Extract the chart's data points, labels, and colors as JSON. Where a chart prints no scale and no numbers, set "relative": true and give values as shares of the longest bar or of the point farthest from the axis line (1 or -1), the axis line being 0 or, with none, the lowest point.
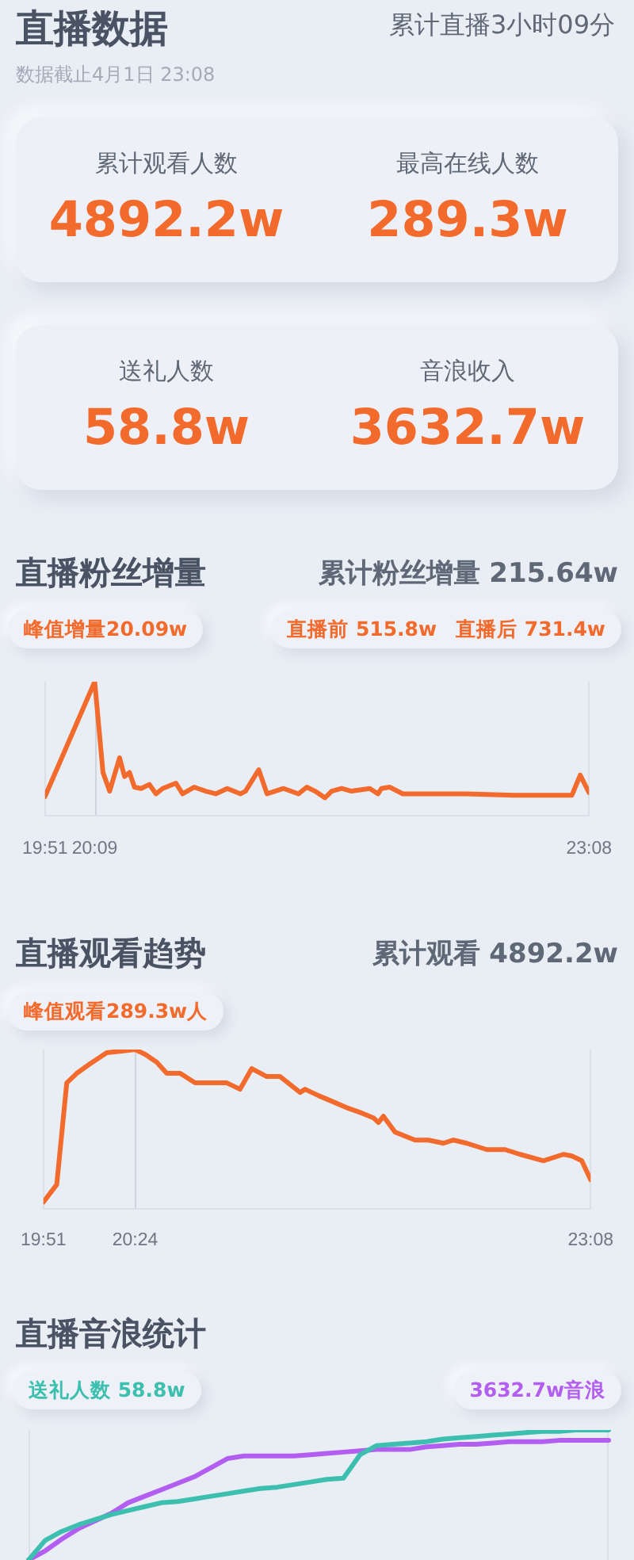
{
  "chart_data": [
    {
      "type": "other",
      "title": "直播数据",
      "subtitle": "累计直播3小时09分",
      "annotations": [
        "数据截止4月1日 23:08",
        "累计观看人数",
        "4892.2w",
        "最高在线人数",
        "289.3w",
        "送礼人数",
        "58.8w",
        "音浪收入",
        "3632.7w"
      ]
    },
    {
      "type": "line",
      "title": "直播粉丝增量",
      "annotations": [
        "累计粉丝增量 215.64w",
        "峰值增量20.09w",
        "直播前 515.8w",
        "直播后 731.4w"
      ],
      "relative": true,
      "marker": "none",
      "color": "#f26a2c",
      "x": [
        19.85,
        20.15,
        20.2,
        20.24,
        20.3,
        20.33,
        20.36,
        20.39,
        20.43,
        20.48,
        20.52,
        20.56,
        20.64,
        20.68,
        20.75,
        20.82,
        20.88,
        20.95,
        21.03,
        21.06,
        21.14,
        21.19,
        21.29,
        21.38,
        21.43,
        21.48,
        21.54,
        21.58,
        21.64,
        21.7,
        21.81,
        21.86,
        21.88,
        21.93,
        22.01,
        22.1,
        22.39,
        22.68,
        22.92,
        23.03,
        23.08,
        23.133
      ],
      "values": [
        0.14,
        1,
        0.32,
        0.18,
        0.43,
        0.29,
        0.32,
        0.21,
        0.2,
        0.23,
        0.16,
        0.2,
        0.24,
        0.16,
        0.21,
        0.18,
        0.16,
        0.2,
        0.16,
        0.18,
        0.34,
        0.16,
        0.2,
        0.16,
        0.21,
        0.18,
        0.13,
        0.18,
        0.2,
        0.18,
        0.2,
        0.16,
        0.2,
        0.21,
        0.16,
        0.16,
        0.16,
        0.15,
        0.15,
        0.15,
        0.3,
        0.17
      ],
      "xlim": [
        19.85,
        23.133
      ],
      "xticks": [
        {
          "value": 19.85,
          "label": "19:51"
        },
        {
          "value": 20.15,
          "label": "20:09"
        },
        {
          "value": 23.133,
          "label": "23:08"
        }
      ],
      "ref_lines": [
        {
          "axis": "x",
          "value": 20.15
        }
      ]
    },
    {
      "type": "line",
      "title": "直播观看趋势",
      "annotations": [
        "累计观看 4892.2w",
        "峰值观看289.3w人"
      ],
      "relative": true,
      "marker": "none",
      "color": "#f26a2c",
      "x": [
        19.85,
        19.93,
        19.99,
        20.05,
        20.13,
        20.23,
        20.32,
        20.4,
        20.46,
        20.53,
        20.59,
        20.67,
        20.76,
        20.84,
        20.95,
        21.03,
        21.1,
        21.19,
        21.27,
        21.39,
        21.42,
        21.5,
        21.59,
        21.68,
        21.76,
        21.83,
        21.86,
        21.89,
        21.96,
        22.08,
        22.16,
        22.25,
        22.31,
        22.39,
        22.51,
        22.62,
        22.71,
        22.85,
        22.97,
        23.02,
        23.08,
        23.133
      ],
      "values": [
        0.04,
        0.15,
        0.79,
        0.85,
        0.91,
        0.98,
        0.99,
        1,
        0.97,
        0.92,
        0.85,
        0.85,
        0.79,
        0.79,
        0.79,
        0.75,
        0.88,
        0.83,
        0.83,
        0.73,
        0.75,
        0.71,
        0.67,
        0.63,
        0.6,
        0.57,
        0.54,
        0.58,
        0.48,
        0.43,
        0.43,
        0.41,
        0.43,
        0.41,
        0.37,
        0.37,
        0.34,
        0.3,
        0.34,
        0.33,
        0.3,
        0.18
      ],
      "xlim": [
        19.85,
        23.133
      ],
      "xticks": [
        {
          "value": 19.85,
          "label": "19:51"
        },
        {
          "value": 20.4,
          "label": "20:24"
        },
        {
          "value": 23.133,
          "label": "23:08"
        }
      ],
      "ref_lines": [
        {
          "axis": "x",
          "value": 20.4
        }
      ]
    },
    {
      "type": "line",
      "title": "直播音浪统计",
      "relative": true,
      "marker": "none",
      "legend": "top",
      "categories": [
        null,
        null,
        null,
        null,
        null,
        null,
        null,
        null,
        null,
        null,
        null,
        null,
        null,
        null,
        null,
        null,
        null,
        null,
        null,
        null,
        null,
        null,
        null,
        null,
        null,
        null,
        null,
        null,
        null,
        null,
        null,
        null,
        null,
        null,
        null,
        null
      ],
      "series": [
        {
          "name": "送礼人数 58.8w",
          "color": "#3cbfae",
          "values": [
            0,
            0.15,
            0.22,
            0.27,
            0.31,
            0.35,
            0.38,
            0.41,
            0.44,
            0.45,
            0.47,
            0.49,
            0.51,
            0.53,
            0.55,
            0.56,
            0.58,
            0.6,
            0.62,
            0.63,
            0.81,
            0.88,
            0.89,
            0.9,
            0.91,
            0.93,
            0.94,
            0.95,
            0.96,
            0.97,
            0.98,
            0.99,
            0.99,
            1,
            1,
            1
          ]
        },
        {
          "name": "3632.7w音浪",
          "color": "#b25ef0",
          "values": [
            0,
            0.07,
            0.16,
            0.24,
            0.3,
            0.36,
            0.44,
            0.49,
            0.54,
            0.59,
            0.64,
            0.71,
            0.78,
            0.8,
            0.8,
            0.8,
            0.8,
            0.81,
            0.82,
            0.83,
            0.84,
            0.85,
            0.85,
            0.85,
            0.87,
            0.88,
            0.89,
            0.89,
            0.9,
            0.91,
            0.91,
            0.91,
            0.92,
            0.92,
            0.92,
            0.92
          ]
        }
      ]
    }
  ]
}
